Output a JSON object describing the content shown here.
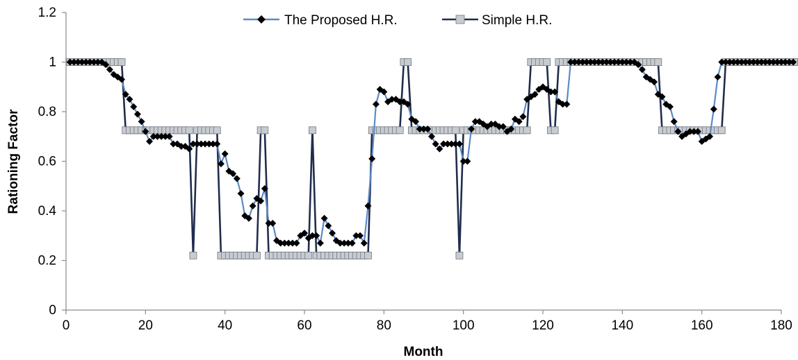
{
  "chart_data": {
    "type": "line",
    "xlabel": "Month",
    "ylabel": "Rationing Factor",
    "xlim": [
      0,
      180
    ],
    "ylim": [
      0,
      1.2
    ],
    "x_ticks": [
      0,
      20,
      40,
      60,
      80,
      100,
      120,
      140,
      160,
      180
    ],
    "y_ticks": [
      0,
      0.2,
      0.4,
      0.6,
      0.8,
      1,
      1.2
    ],
    "x_tick_labels": [
      "0",
      "20",
      "40",
      "60",
      "80",
      "100",
      "120",
      "140",
      "160",
      "180"
    ],
    "y_tick_labels": [
      "0",
      "0.2",
      "0.4",
      "0.6",
      "0.8",
      "1",
      "1.2"
    ],
    "grid": false,
    "legend_position": "top-center",
    "series": [
      {
        "name": "The Proposed H.R.",
        "line_color": "#5b8ac6",
        "marker_color": "#000000",
        "marker": "diamond",
        "x_start": 1,
        "values": [
          1,
          1,
          1,
          1,
          1,
          1,
          1,
          1,
          1,
          0.99,
          0.97,
          0.95,
          0.94,
          0.93,
          0.87,
          0.85,
          0.82,
          0.79,
          0.76,
          0.72,
          0.68,
          0.7,
          0.7,
          0.7,
          0.7,
          0.7,
          0.67,
          0.67,
          0.66,
          0.66,
          0.65,
          0.67,
          0.67,
          0.67,
          0.67,
          0.67,
          0.67,
          0.67,
          0.59,
          0.63,
          0.56,
          0.55,
          0.53,
          0.47,
          0.38,
          0.37,
          0.42,
          0.45,
          0.44,
          0.49,
          0.35,
          0.35,
          0.28,
          0.27,
          0.27,
          0.27,
          0.27,
          0.27,
          0.3,
          0.31,
          0.29,
          0.3,
          0.3,
          0.27,
          0.37,
          0.34,
          0.31,
          0.28,
          0.27,
          0.27,
          0.27,
          0.27,
          0.3,
          0.3,
          0.27,
          0.42,
          0.61,
          0.83,
          0.89,
          0.88,
          0.84,
          0.85,
          0.85,
          0.84,
          0.84,
          0.83,
          0.77,
          0.76,
          0.73,
          0.73,
          0.73,
          0.7,
          0.67,
          0.65,
          0.67,
          0.67,
          0.67,
          0.67,
          0.67,
          0.6,
          0.6,
          0.73,
          0.76,
          0.76,
          0.75,
          0.74,
          0.75,
          0.75,
          0.74,
          0.74,
          0.72,
          0.73,
          0.77,
          0.76,
          0.78,
          0.85,
          0.86,
          0.87,
          0.89,
          0.9,
          0.89,
          0.88,
          0.88,
          0.84,
          0.83,
          0.83,
          1,
          1,
          1,
          1,
          1,
          1,
          1,
          1,
          1,
          1,
          1,
          1,
          1,
          1,
          1,
          1,
          1,
          0.99,
          0.97,
          0.94,
          0.93,
          0.92,
          0.87,
          0.86,
          0.83,
          0.82,
          0.76,
          0.72,
          0.7,
          0.71,
          0.72,
          0.72,
          0.72,
          0.68,
          0.69,
          0.7,
          0.81,
          0.94,
          1,
          1,
          1,
          1,
          1,
          1,
          1,
          1,
          1,
          1,
          1,
          1,
          1,
          1,
          1,
          1,
          1,
          1,
          1
        ]
      },
      {
        "name": "Simple H.R.",
        "line_color": "#1f2d4d",
        "marker_color": "#c8ccd0",
        "marker": "square",
        "x_start": 1,
        "values": [
          1,
          1,
          1,
          1,
          1,
          1,
          1,
          1,
          1,
          1,
          1,
          1,
          1,
          1,
          0.725,
          0.725,
          0.725,
          0.725,
          0.725,
          0.725,
          0.725,
          0.725,
          0.725,
          0.725,
          0.725,
          0.725,
          0.725,
          0.725,
          0.725,
          0.725,
          0.725,
          0.22,
          0.725,
          0.725,
          0.725,
          0.725,
          0.725,
          0.725,
          0.22,
          0.22,
          0.22,
          0.22,
          0.22,
          0.22,
          0.22,
          0.22,
          0.22,
          0.22,
          0.725,
          0.725,
          0.22,
          0.22,
          0.22,
          0.22,
          0.22,
          0.22,
          0.22,
          0.22,
          0.22,
          0.22,
          0.22,
          0.725,
          0.22,
          0.22,
          0.22,
          0.22,
          0.22,
          0.22,
          0.22,
          0.22,
          0.22,
          0.22,
          0.22,
          0.22,
          0.22,
          0.22,
          0.725,
          0.725,
          0.725,
          0.725,
          0.725,
          0.725,
          0.725,
          0.725,
          1,
          1,
          0.725,
          0.725,
          0.725,
          0.725,
          0.725,
          0.725,
          0.725,
          0.725,
          0.725,
          0.725,
          0.725,
          0.725,
          0.22,
          0.725,
          0.725,
          0.725,
          0.725,
          0.725,
          0.725,
          0.725,
          0.725,
          0.725,
          0.725,
          0.725,
          0.725,
          0.725,
          0.725,
          0.725,
          0.725,
          0.725,
          1,
          1,
          1,
          1,
          1,
          0.725,
          0.725,
          1,
          1,
          1,
          1,
          1,
          1,
          1,
          1,
          1,
          1,
          1,
          1,
          1,
          1,
          1,
          1,
          1,
          1,
          1,
          1,
          1,
          1,
          1,
          1,
          1,
          1,
          0.725,
          0.725,
          0.725,
          0.725,
          0.725,
          0.725,
          0.725,
          0.725,
          0.725,
          0.725,
          0.725,
          0.725,
          0.725,
          0.725,
          0.725,
          0.725,
          1,
          1,
          1,
          1,
          1,
          1,
          1,
          1,
          1,
          1,
          1,
          1,
          1,
          1,
          1,
          1,
          1,
          1,
          1,
          1
        ]
      }
    ]
  }
}
